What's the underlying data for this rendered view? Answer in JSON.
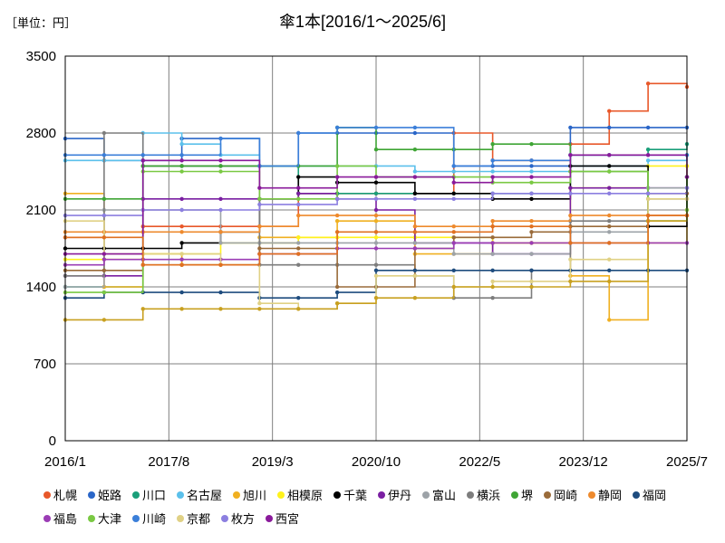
{
  "unit_label": "［単位：円］",
  "chart_data": {
    "type": "line",
    "title": "傘1本[2016/1～2025/6]",
    "xlabel": "",
    "ylabel": "",
    "ylim": [
      0,
      3500
    ],
    "yticks": [
      0,
      700,
      1400,
      2100,
      2800,
      3500
    ],
    "xtick_labels": [
      "2016/1",
      "2017/8",
      "2019/3",
      "2020/10",
      "2022/5",
      "2023/12",
      "2025/7"
    ],
    "grid": true,
    "legend_position": "bottom",
    "x": [
      "2016/1",
      "2016/8",
      "2017/3",
      "2017/10",
      "2018/5",
      "2018/12",
      "2019/7",
      "2020/2",
      "2020/9",
      "2021/4",
      "2021/11",
      "2022/6",
      "2023/1",
      "2023/8",
      "2024/3",
      "2024/10",
      "2025/6"
    ],
    "series": [
      {
        "name": "札幌",
        "color": "#e8582a",
        "values": [
          1850,
          1900,
          1950,
          1950,
          1950,
          1950,
          2250,
          2250,
          2250,
          2250,
          2800,
          2550,
          2550,
          2700,
          3000,
          3250,
          3220
        ]
      },
      {
        "name": "姫路",
        "color": "#2a66c8",
        "values": [
          2750,
          2550,
          2550,
          2750,
          2750,
          2500,
          2800,
          2800,
          2800,
          2800,
          2500,
          2500,
          2500,
          2850,
          2850,
          2850,
          2850
        ]
      },
      {
        "name": "川口",
        "color": "#1a9f7a",
        "values": [
          1400,
          1400,
          2500,
          2500,
          2500,
          2500,
          2250,
          2250,
          2250,
          2250,
          2250,
          2250,
          2250,
          2600,
          2600,
          2650,
          2700
        ]
      },
      {
        "name": "名古屋",
        "color": "#5bc0eb",
        "values": [
          2550,
          2550,
          2800,
          2700,
          2600,
          2500,
          2500,
          2500,
          2500,
          2450,
          2450,
          2450,
          2450,
          2500,
          2500,
          2550,
          2600
        ]
      },
      {
        "name": "旭川",
        "color": "#f0b021",
        "values": [
          2250,
          1400,
          1700,
          1600,
          1600,
          1850,
          1850,
          2000,
          2000,
          1700,
          1700,
          1800,
          1800,
          1500,
          1100,
          1800,
          2500
        ]
      },
      {
        "name": "相模原",
        "color": "#fff21c",
        "values": [
          1650,
          1650,
          1700,
          1700,
          1800,
          1800,
          1850,
          1850,
          1850,
          1850,
          1850,
          1800,
          1800,
          2300,
          2300,
          2500,
          2500
        ]
      },
      {
        "name": "千葉",
        "color": "#000000",
        "values": [
          1750,
          1750,
          1750,
          1800,
          1900,
          2200,
          2400,
          2350,
          2350,
          2250,
          2250,
          2200,
          2200,
          2500,
          2500,
          1950,
          2400
        ]
      },
      {
        "name": "伊丹",
        "color": "#7a1fa2",
        "values": [
          1500,
          1500,
          2200,
          2200,
          2200,
          2200,
          2250,
          2200,
          2100,
          1800,
          1800,
          1700,
          1700,
          2300,
          2300,
          2300,
          2300
        ]
      },
      {
        "name": "富山",
        "color": "#9da3a8",
        "values": [
          1400,
          2100,
          2100,
          2100,
          1800,
          1800,
          1800,
          1800,
          1800,
          1800,
          1700,
          1700,
          1700,
          1900,
          1900,
          2300,
          2300
        ]
      },
      {
        "name": "横浜",
        "color": "#7d7d7d",
        "values": [
          1500,
          2800,
          2500,
          2500,
          2500,
          1600,
          1600,
          1600,
          1600,
          1500,
          1300,
          1300,
          1550,
          2000,
          2000,
          2200,
          2200
        ]
      },
      {
        "name": "堺",
        "color": "#3fa535",
        "values": [
          2200,
          2200,
          2500,
          2500,
          2500,
          2500,
          2500,
          2850,
          2650,
          2650,
          2650,
          2700,
          2700,
          2450,
          2450,
          2000,
          2400
        ]
      },
      {
        "name": "岡崎",
        "color": "#9a6b3a",
        "values": [
          1550,
          1550,
          1600,
          1600,
          1600,
          1750,
          1750,
          1400,
          1400,
          1750,
          1850,
          1850,
          1900,
          1950,
          1950,
          2250,
          2250
        ]
      },
      {
        "name": "静岡",
        "color": "#ee8a2d",
        "values": [
          1900,
          1900,
          1900,
          1900,
          1900,
          1950,
          2050,
          2050,
          2050,
          1950,
          1950,
          2000,
          2000,
          2050,
          2050,
          2050,
          2100
        ]
      },
      {
        "name": "福岡",
        "color": "#1e4c7e",
        "values": [
          1300,
          1350,
          1350,
          1350,
          1350,
          1300,
          1300,
          1350,
          1550,
          1550,
          1550,
          1550,
          1550,
          1550,
          1550,
          1550,
          1550
        ]
      },
      {
        "name": "福島",
        "color": "#9b3db5",
        "values": [
          1600,
          1650,
          1650,
          1650,
          1650,
          1700,
          1700,
          1750,
          1750,
          1750,
          1800,
          1800,
          1800,
          1800,
          1800,
          1800,
          1800
        ]
      },
      {
        "name": "大津",
        "color": "#7ac943",
        "values": [
          1350,
          1350,
          2450,
          2450,
          2450,
          2200,
          2200,
          2500,
          2400,
          2400,
          2400,
          2350,
          2350,
          2450,
          2450,
          2000,
          2100
        ]
      },
      {
        "name": "川崎",
        "color": "#3b7fd9",
        "values": [
          2600,
          2600,
          2600,
          2600,
          2750,
          2500,
          2800,
          2850,
          2850,
          2850,
          2500,
          2550,
          2550,
          2600,
          2600,
          2600,
          2600
        ]
      },
      {
        "name": "京都",
        "color": "#e0d185",
        "values": [
          2000,
          1700,
          1700,
          1700,
          1600,
          1250,
          1200,
          1250,
          1500,
          1500,
          1400,
          1450,
          1450,
          1650,
          1650,
          2200,
          2200
        ]
      },
      {
        "name": "枚方",
        "color": "#8c7fe0",
        "values": [
          2050,
          2050,
          2100,
          2100,
          2100,
          2150,
          2150,
          2200,
          2200,
          2200,
          2200,
          2250,
          2250,
          2250,
          2250,
          2250,
          2300
        ]
      },
      {
        "name": "西宮",
        "color": "#8a1a9b",
        "values": [
          1700,
          1700,
          2550,
          2550,
          2550,
          2300,
          2300,
          2400,
          2400,
          2400,
          2350,
          2400,
          2400,
          2600,
          2600,
          2600,
          2400
        ]
      },
      {
        "name": "",
        "color": "#c8a020",
        "values": [
          1100,
          1100,
          1200,
          1200,
          1200,
          1200,
          1200,
          1250,
          1300,
          1300,
          1400,
          1400,
          1400,
          1450,
          1450,
          2000,
          2050
        ]
      },
      {
        "name": "",
        "color": "#e07020",
        "values": [
          1850,
          1850,
          1600,
          1600,
          1600,
          1700,
          1700,
          1900,
          1900,
          1900,
          1900,
          1950,
          1950,
          1800,
          1800,
          2050,
          2050
        ]
      }
    ]
  }
}
